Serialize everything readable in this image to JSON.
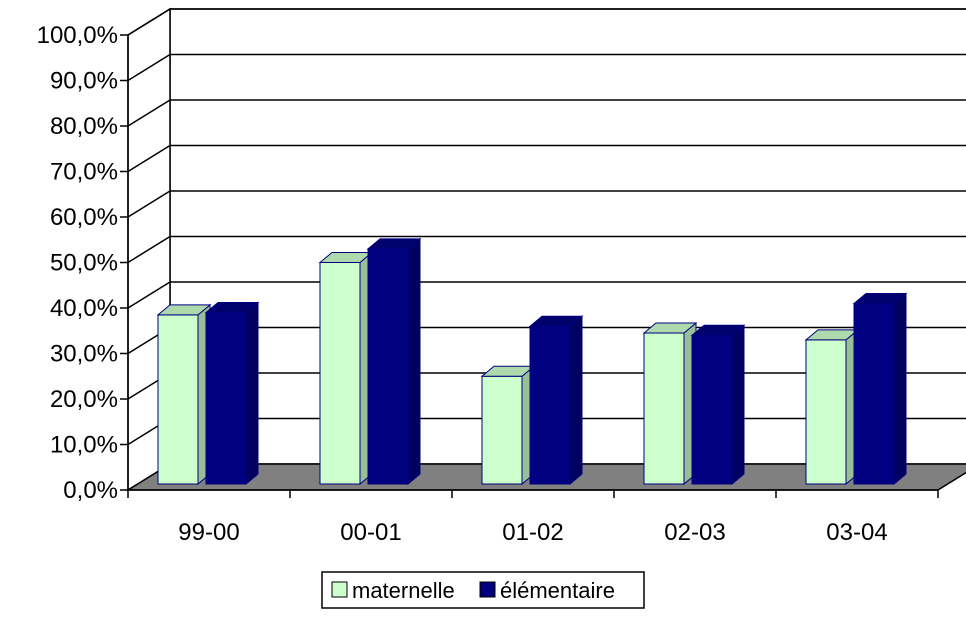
{
  "chart_data": {
    "type": "bar",
    "categories": [
      "99-00",
      "00-01",
      "01-02",
      "02-03",
      "03-04"
    ],
    "series": [
      {
        "name": "maternelle",
        "values": [
          38.5,
          50.0,
          25.0,
          34.5,
          33.0
        ]
      },
      {
        "name": "élémentaire",
        "values": [
          39.0,
          53.0,
          36.0,
          34.0,
          41.0
        ]
      }
    ],
    "ylim": [
      0,
      100
    ],
    "y_ticks": [
      0,
      10,
      20,
      30,
      40,
      50,
      60,
      70,
      80,
      90,
      100
    ],
    "y_tick_labels": [
      "0,0%",
      "10,0%",
      "20,0%",
      "30,0%",
      "40,0%",
      "50,0%",
      "60,0%",
      "70,0%",
      "80,0%",
      "90,0%",
      "100,0%"
    ],
    "grid": true,
    "legend_position": "bottom",
    "colors": {
      "maternelle": "#ccffcc",
      "élémentaire": "#000080",
      "floor": "#808080",
      "outline": "#000080"
    }
  }
}
